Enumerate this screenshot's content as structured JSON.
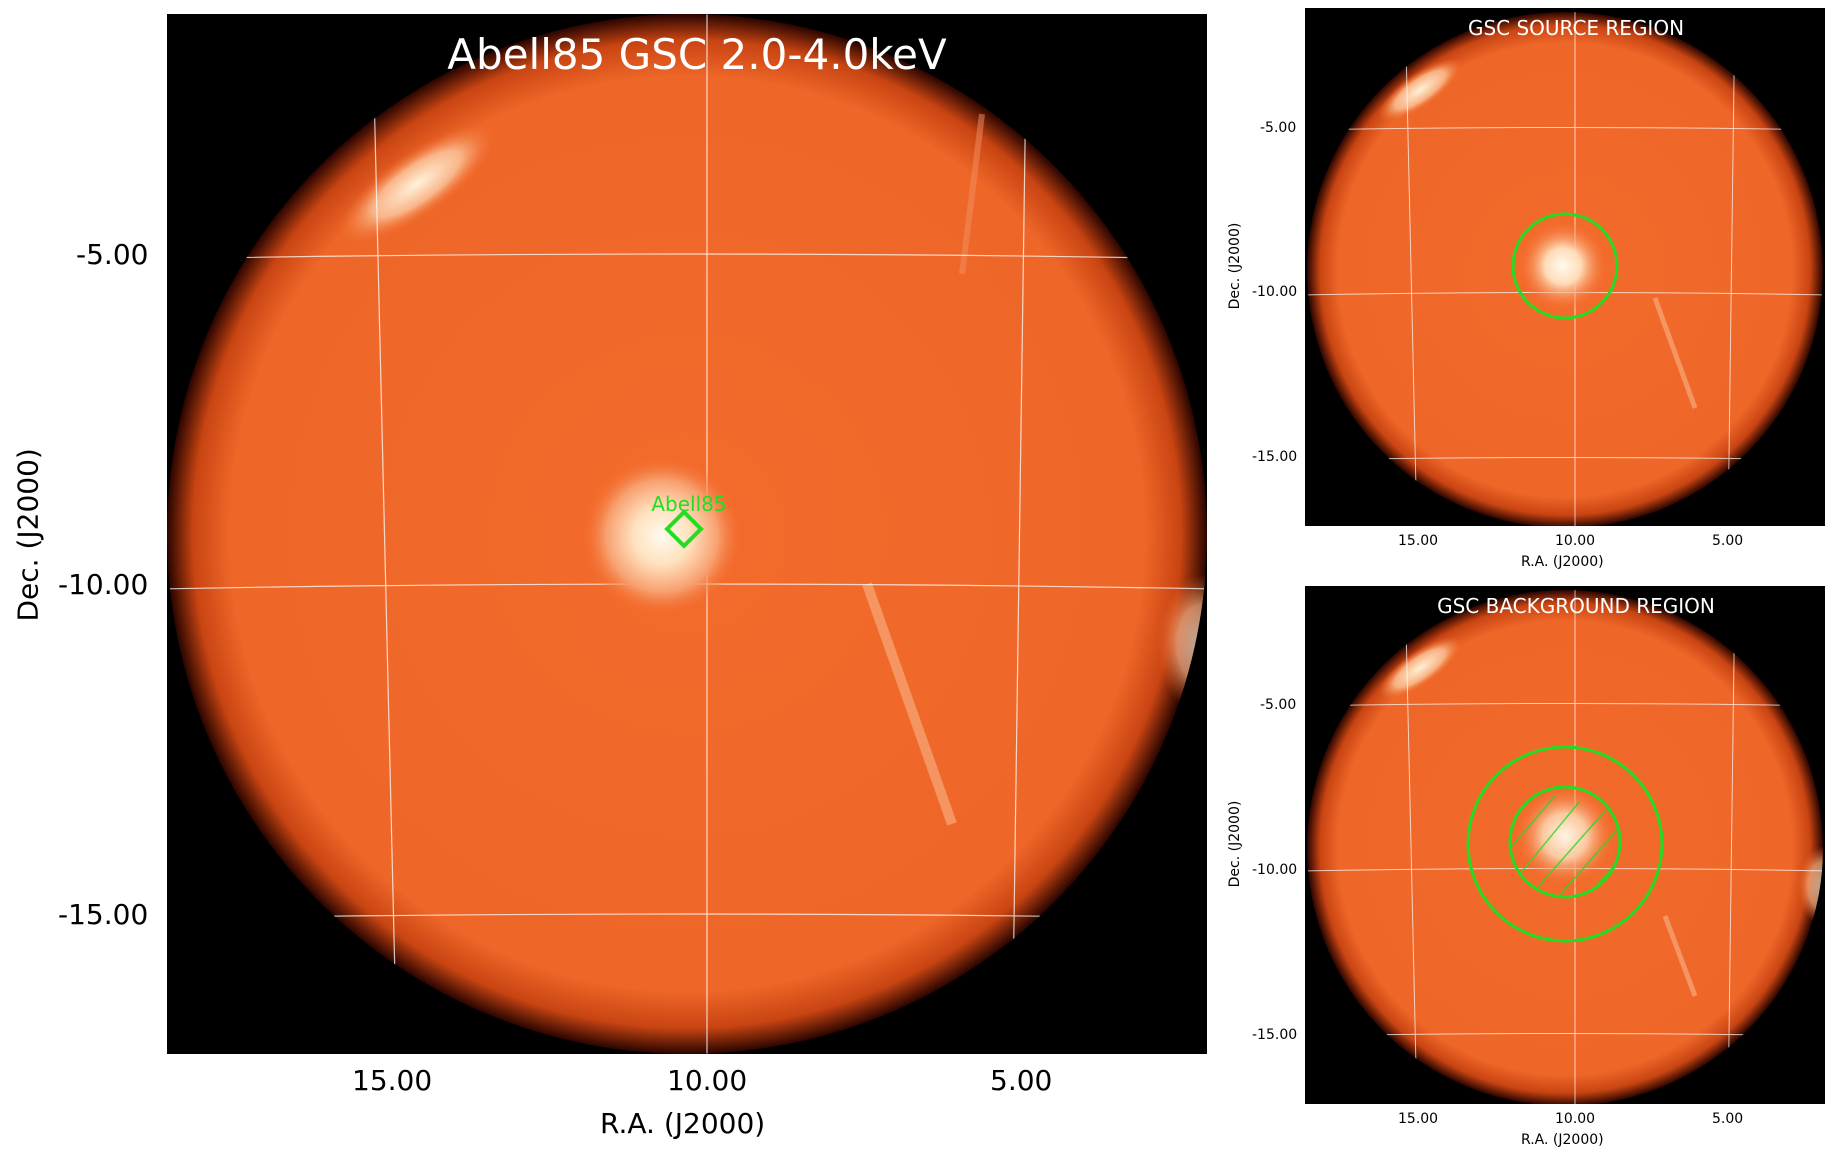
{
  "main": {
    "title": "Abell85 GSC 2.0-4.0keV",
    "source_label": "Abell85",
    "xlabel": "R.A. (J2000)",
    "ylabel": "Dec. (J2000)",
    "xticks": [
      "15.00",
      "10.00",
      "5.00"
    ],
    "yticks": [
      "-5.00",
      "-10.00",
      "-15.00"
    ]
  },
  "source_region": {
    "title": "GSC SOURCE REGION",
    "xlabel": "R.A. (J2000)",
    "ylabel": "Dec. (J2000)",
    "xticks": [
      "15.00",
      "10.00",
      "5.00"
    ],
    "yticks": [
      "-5.00",
      "-10.00",
      "-15.00"
    ]
  },
  "background_region": {
    "title": "GSC BACKGROUND REGION",
    "xlabel": "R.A. (J2000)",
    "ylabel": "Dec. (J2000)",
    "xticks": [
      "15.00",
      "10.00",
      "5.00"
    ],
    "yticks": [
      "-5.00",
      "-10.00",
      "-15.00"
    ]
  },
  "colors": {
    "field": "#f06a2a",
    "glow": "#fff4e0",
    "region": "#22dd22",
    "grid": "#ffffff"
  }
}
